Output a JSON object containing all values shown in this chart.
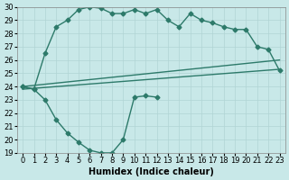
{
  "xlabel": "Humidex (Indice chaleur)",
  "bg_color": "#c8e8e8",
  "line_color": "#2d7a6a",
  "grid_color": "#b0d4d4",
  "xlim": [
    -0.5,
    23.5
  ],
  "ylim": [
    19,
    30
  ],
  "xticks": [
    0,
    1,
    2,
    3,
    4,
    5,
    6,
    7,
    8,
    9,
    10,
    11,
    12,
    13,
    14,
    15,
    16,
    17,
    18,
    19,
    20,
    21,
    22,
    23
  ],
  "yticks": [
    19,
    20,
    21,
    22,
    23,
    24,
    25,
    26,
    27,
    28,
    29,
    30
  ],
  "upper_x": [
    0,
    1,
    2,
    3,
    4,
    5,
    6,
    7,
    8,
    9,
    10,
    11,
    12,
    13,
    14,
    15,
    16,
    17,
    18,
    19,
    20,
    21,
    22,
    23
  ],
  "upper_y": [
    24,
    23.8,
    26.5,
    28.5,
    29.0,
    29.8,
    30.0,
    29.9,
    29.5,
    29.5,
    29.8,
    29.5,
    29.8,
    29.0,
    28.5,
    29.5,
    29.0,
    28.8,
    28.5,
    28.3,
    28.3,
    27.0,
    26.8,
    25.2
  ],
  "lower_x": [
    0,
    1,
    2,
    3,
    4,
    5,
    6,
    7,
    8,
    9,
    10,
    11,
    12
  ],
  "lower_y": [
    24,
    23.8,
    23.0,
    21.5,
    20.5,
    19.8,
    19.2,
    19.0,
    19.0,
    20.0,
    23.2,
    23.3,
    23.2
  ],
  "line2_x": [
    0,
    23
  ],
  "line2_y": [
    24.0,
    26.0
  ],
  "line3_x": [
    0,
    23
  ],
  "line3_y": [
    23.8,
    25.3
  ],
  "line_width": 1.0,
  "marker": "D",
  "marker_size": 2.5,
  "font_size_label": 7,
  "font_size_tick": 6
}
